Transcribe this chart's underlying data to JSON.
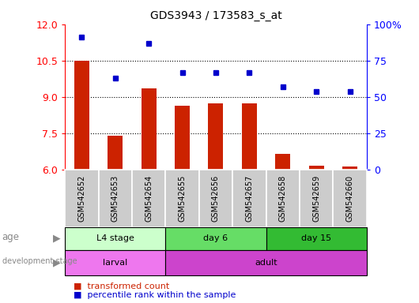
{
  "title": "GDS3943 / 173583_s_at",
  "samples": [
    "GSM542652",
    "GSM542653",
    "GSM542654",
    "GSM542655",
    "GSM542656",
    "GSM542657",
    "GSM542658",
    "GSM542659",
    "GSM542660"
  ],
  "transformed_count": [
    10.5,
    7.4,
    9.35,
    8.65,
    8.72,
    8.72,
    6.65,
    6.15,
    6.12
  ],
  "percentile_rank_pct": [
    91,
    63,
    87,
    67,
    67,
    67,
    57,
    54,
    54
  ],
  "ylim_left": [
    6,
    12
  ],
  "ylim_right": [
    0,
    100
  ],
  "yticks_left": [
    6,
    7.5,
    9,
    10.5,
    12
  ],
  "yticks_right_vals": [
    0,
    25,
    50,
    75,
    100
  ],
  "yticks_right_labels": [
    "0",
    "25",
    "50",
    "75",
    "100%"
  ],
  "bar_color": "#cc2200",
  "dot_color": "#0000cc",
  "bg_color": "#ffffff",
  "age_groups": [
    {
      "label": "L4 stage",
      "start": 0,
      "end": 3,
      "color": "#ccffcc"
    },
    {
      "label": "day 6",
      "start": 3,
      "end": 6,
      "color": "#66dd66"
    },
    {
      "label": "day 15",
      "start": 6,
      "end": 9,
      "color": "#33bb33"
    }
  ],
  "dev_groups": [
    {
      "label": "larval",
      "start": 0,
      "end": 3,
      "color": "#ee77ee"
    },
    {
      "label": "adult",
      "start": 3,
      "end": 9,
      "color": "#cc44cc"
    }
  ],
  "sample_bg_color": "#cccccc",
  "sample_border_color": "#ffffff",
  "legend": [
    {
      "label": "transformed count",
      "color": "#cc2200"
    },
    {
      "label": "percentile rank within the sample",
      "color": "#0000cc"
    }
  ]
}
